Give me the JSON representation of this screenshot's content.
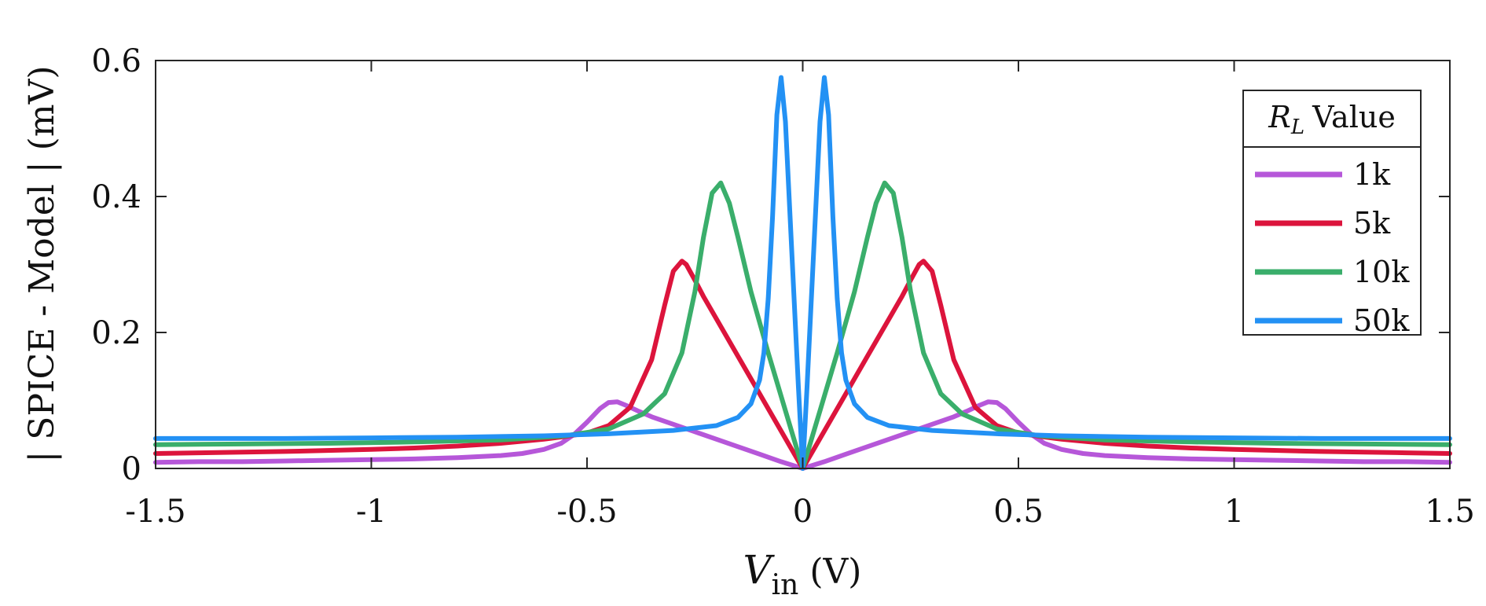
{
  "chart_data": {
    "type": "line",
    "xlabel_symbol": "V",
    "xlabel_subscript": "in",
    "xlabel_unit": "(V)",
    "ylabel": "| SPICE - Model | (mV)",
    "xlim": [
      -1.5,
      1.5
    ],
    "ylim": [
      0,
      0.6
    ],
    "xticks": [
      -1.5,
      -1,
      -0.5,
      0,
      0.5,
      1,
      1.5
    ],
    "xtick_labels": [
      "-1.5",
      "-1",
      "-0.5",
      "0",
      "0.5",
      "1",
      "1.5"
    ],
    "yticks": [
      0,
      0.2,
      0.4,
      0.6
    ],
    "ytick_labels": [
      "0",
      "0.2",
      "0.4",
      "0.6"
    ],
    "legend": {
      "title_symbol": "R",
      "title_subscript": "L",
      "title_text": "Value",
      "position": "top-right"
    },
    "series": [
      {
        "name": "1k",
        "color": "#b657d9",
        "x": [
          0,
          0.05,
          0.1,
          0.15,
          0.2,
          0.25,
          0.3,
          0.35,
          0.38,
          0.41,
          0.43,
          0.45,
          0.47,
          0.5,
          0.53,
          0.56,
          0.6,
          0.65,
          0.7,
          0.8,
          0.9,
          1.0,
          1.1,
          1.2,
          1.3,
          1.4,
          1.5
        ],
        "y": [
          0,
          0.01,
          0.021,
          0.032,
          0.043,
          0.054,
          0.065,
          0.076,
          0.084,
          0.093,
          0.098,
          0.097,
          0.088,
          0.068,
          0.05,
          0.037,
          0.028,
          0.022,
          0.019,
          0.016,
          0.014,
          0.013,
          0.012,
          0.011,
          0.01,
          0.01,
          0.009
        ]
      },
      {
        "name": "5k",
        "color": "#dc143c",
        "x": [
          0,
          0.05,
          0.1,
          0.15,
          0.2,
          0.23,
          0.25,
          0.27,
          0.28,
          0.3,
          0.32,
          0.35,
          0.4,
          0.45,
          0.5,
          0.55,
          0.6,
          0.7,
          0.8,
          0.9,
          1.0,
          1.2,
          1.4,
          1.5
        ],
        "y": [
          0,
          0.055,
          0.11,
          0.165,
          0.22,
          0.253,
          0.277,
          0.3,
          0.305,
          0.29,
          0.24,
          0.16,
          0.09,
          0.063,
          0.052,
          0.047,
          0.043,
          0.037,
          0.033,
          0.03,
          0.028,
          0.025,
          0.023,
          0.022
        ]
      },
      {
        "name": "10k",
        "color": "#3aae6b",
        "x": [
          0,
          0.04,
          0.08,
          0.12,
          0.15,
          0.17,
          0.19,
          0.21,
          0.23,
          0.25,
          0.28,
          0.32,
          0.37,
          0.45,
          0.55,
          0.7,
          0.9,
          1.1,
          1.3,
          1.5
        ],
        "y": [
          0,
          0.085,
          0.17,
          0.26,
          0.34,
          0.39,
          0.42,
          0.405,
          0.34,
          0.26,
          0.17,
          0.11,
          0.08,
          0.058,
          0.048,
          0.042,
          0.039,
          0.037,
          0.036,
          0.035
        ]
      },
      {
        "name": "50k",
        "color": "#2391f4",
        "x": [
          0,
          0.01,
          0.02,
          0.03,
          0.04,
          0.05,
          0.06,
          0.07,
          0.08,
          0.09,
          0.1,
          0.12,
          0.15,
          0.2,
          0.3,
          0.45,
          0.6,
          0.8,
          1.0,
          1.2,
          1.5
        ],
        "y": [
          0,
          0.12,
          0.25,
          0.38,
          0.51,
          0.575,
          0.52,
          0.37,
          0.25,
          0.17,
          0.13,
          0.095,
          0.075,
          0.063,
          0.056,
          0.051,
          0.048,
          0.046,
          0.045,
          0.044,
          0.044
        ]
      }
    ]
  }
}
